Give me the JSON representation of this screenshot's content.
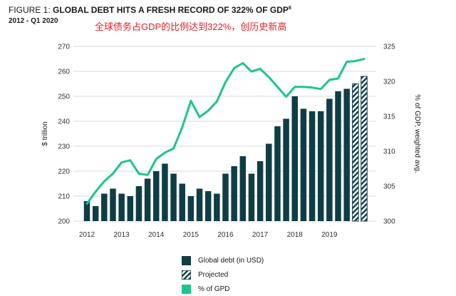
{
  "header": {
    "figure_label": "FIGURE 1: ",
    "title": "GLOBAL DEBT HITS A FRESH RECORD OF 322% OF GDP",
    "title_sup": "6",
    "subtitle": "2012 - Q1 2020",
    "cn_note": "全球债务占GDP的比例达到322%，创历史新高"
  },
  "colors": {
    "bar": "#0f3d45",
    "line": "#1ec48f",
    "grid": "#d9d9d9",
    "axis_text": "#333333"
  },
  "chart_data": {
    "type": "bar+line",
    "ylabel": "$ trillion",
    "y2label": "% of GDP, weighted avg.",
    "ylim": [
      200,
      270
    ],
    "y_ticks": [
      "200",
      "210",
      "220",
      "230",
      "240",
      "250",
      "260",
      "270"
    ],
    "y2lim": [
      300,
      325
    ],
    "y2_ticks": [
      "300",
      "305",
      "310",
      "315",
      "320",
      "325"
    ],
    "x_ticks": [
      "2012",
      "2013",
      "2014",
      "2015",
      "2016",
      "2017",
      "2018",
      "2019"
    ],
    "grid": true,
    "quarter_x": [
      2012.0,
      2012.25,
      2012.5,
      2012.75,
      2013.0,
      2013.25,
      2013.5,
      2013.75,
      2014.0,
      2014.25,
      2014.5,
      2014.75,
      2015.0,
      2015.25,
      2015.5,
      2015.75,
      2016.0,
      2016.25,
      2016.5,
      2016.75,
      2017.0,
      2017.25,
      2017.5,
      2017.75,
      2018.0,
      2018.25,
      2018.5,
      2018.75,
      2019.0,
      2019.25,
      2019.5,
      2019.75,
      2020.0
    ],
    "global_debt": [
      208,
      206,
      211,
      213,
      211,
      210,
      214,
      217,
      220,
      223,
      219,
      215,
      210,
      213,
      212,
      211,
      219,
      222,
      226,
      219,
      224,
      231,
      238,
      241,
      250,
      245,
      244,
      244,
      249,
      252,
      253,
      255,
      258
    ],
    "projected": [
      false,
      false,
      false,
      false,
      false,
      false,
      false,
      false,
      false,
      false,
      false,
      false,
      false,
      false,
      false,
      false,
      false,
      false,
      false,
      false,
      false,
      false,
      false,
      false,
      false,
      false,
      false,
      false,
      false,
      false,
      false,
      true,
      true
    ],
    "pct_gdp": [
      302.5,
      304.2,
      305.7,
      306.8,
      308.4,
      308.7,
      306.8,
      306.6,
      308.9,
      309.8,
      310.4,
      313.4,
      317.2,
      314.9,
      315.8,
      317.1,
      319.9,
      321.9,
      322.6,
      321.4,
      321.8,
      320.6,
      319.2,
      317.8,
      319.2,
      319.2,
      319.1,
      318.9,
      320.2,
      320.4,
      322.8,
      322.9,
      323.2
    ],
    "legend": [
      "Global debt (in USD)",
      "Projected",
      "% of GPD"
    ],
    "legend_position": "bottom-center"
  }
}
